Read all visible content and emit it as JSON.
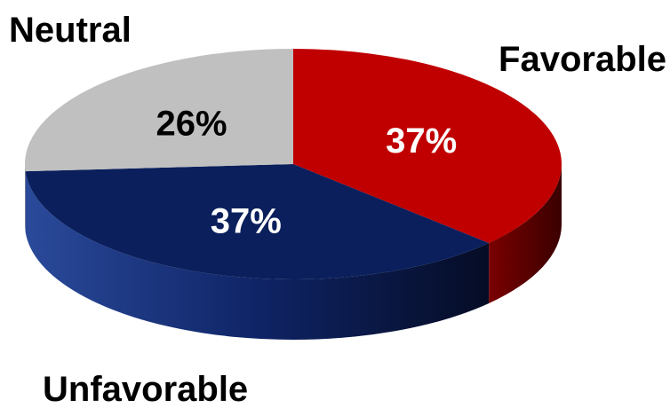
{
  "chart_data": {
    "type": "pie",
    "title": "",
    "categories": [
      "Favorable",
      "Unfavorable",
      "Neutral"
    ],
    "values": [
      37,
      37,
      26
    ],
    "value_labels": [
      "37%",
      "37%",
      "26%"
    ],
    "colors": [
      "#c00000",
      "#0a1f5c",
      "#c0c0c0"
    ],
    "side_colors": [
      "#5c0000",
      "#0c1a45",
      "#8a8a8a"
    ],
    "value_label_colors": [
      "#ffffff",
      "#ffffff",
      "#000000"
    ],
    "legend": "none",
    "style": "3d"
  }
}
